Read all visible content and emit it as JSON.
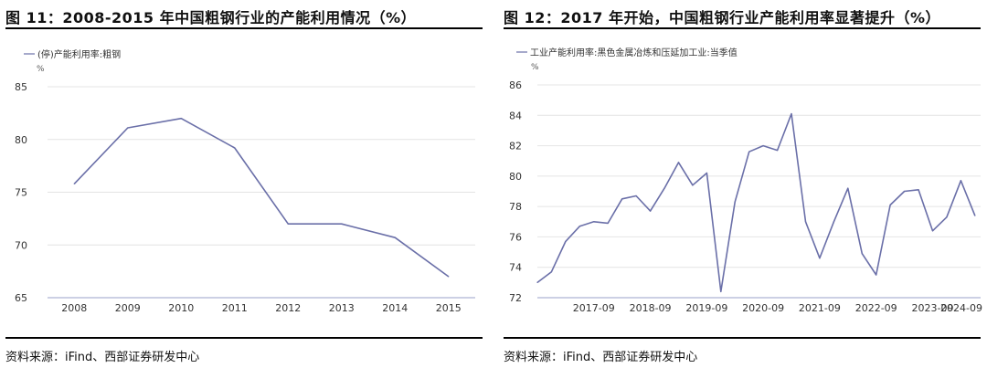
{
  "charts": [
    {
      "id": "left",
      "title": "图 11：2008-2015 年中国粗钢行业的产能利用情况（%）",
      "source": "资料来源：iFind、西部证券研发中心",
      "legend": "(停)产能利用率:粗钢",
      "unit": "%"
    },
    {
      "id": "right",
      "title": "图 12：2017 年开始，中国粗钢行业产能利用率显著提升（%）",
      "source": "资料来源：iFind、西部证券研发中心",
      "legend": "工业产能利用率:黑色金属冶炼和压延加工业:当季值",
      "unit": "%"
    }
  ],
  "chart_data": [
    {
      "type": "line",
      "x": [
        "2008",
        "2009",
        "2010",
        "2011",
        "2012",
        "2013",
        "2014",
        "2015"
      ],
      "series": [
        {
          "name": "(停)产能利用率:粗钢",
          "values": [
            75.8,
            81.1,
            82.0,
            79.2,
            72.0,
            72.0,
            70.7,
            67.0
          ]
        }
      ],
      "yticks": [
        65,
        70,
        75,
        80,
        85
      ],
      "ylim": [
        65,
        85
      ],
      "ylabel": "%",
      "line_color": "#6a6fa8"
    },
    {
      "type": "line",
      "x": [
        "2016-09",
        "2016-12",
        "2017-03",
        "2017-06",
        "2017-09",
        "2017-12",
        "2018-03",
        "2018-06",
        "2018-09",
        "2018-12",
        "2019-03",
        "2019-06",
        "2019-09",
        "2019-12",
        "2020-03",
        "2020-06",
        "2020-09",
        "2020-12",
        "2021-03",
        "2021-06",
        "2021-09",
        "2021-12",
        "2022-03",
        "2022-06",
        "2022-09",
        "2022-12",
        "2023-03",
        "2023-06",
        "2023-09",
        "2023-12",
        "2024-03",
        "2024-06"
      ],
      "series": [
        {
          "name": "工业产能利用率:黑色金属冶炼和压延加工业:当季值",
          "values": [
            73.0,
            73.7,
            75.7,
            76.7,
            77.0,
            76.9,
            78.5,
            78.7,
            77.7,
            79.2,
            80.9,
            79.4,
            80.2,
            72.4,
            78.3,
            81.6,
            82.0,
            81.7,
            84.1,
            77.0,
            74.6,
            77.0,
            79.2,
            74.9,
            73.5,
            78.1,
            79.0,
            79.1,
            76.4,
            77.3,
            79.7,
            77.4
          ]
        }
      ],
      "xticks": [
        "2017-09",
        "2018-09",
        "2019-09",
        "2020-09",
        "2021-09",
        "2022-09",
        "2023-09",
        "2024-09"
      ],
      "yticks": [
        72,
        74,
        76,
        78,
        80,
        82,
        84,
        86
      ],
      "ylim": [
        72,
        86
      ],
      "ylabel": "%",
      "line_color": "#6a6fa8"
    }
  ]
}
